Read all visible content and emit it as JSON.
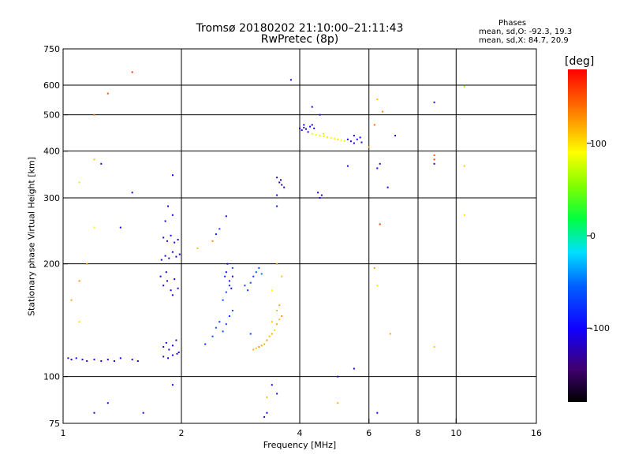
{
  "header": {
    "title_line1": "Tromsø 20180202 21:10:00–21:11:43",
    "title_line2": "RwPretec (8p)",
    "stats_heading": "Phases",
    "stats_o": "mean, sd,O: -92.3, 19.3",
    "stats_x": "mean, sd,X: 84.7, 20.9"
  },
  "colorbar": {
    "unit": "[deg]",
    "ticks": [
      "100",
      "0",
      "-100"
    ],
    "tick_values": [
      100,
      0,
      -100
    ],
    "range": [
      -180,
      180
    ]
  },
  "chart_data": {
    "type": "scatter",
    "title": "Tromsø 20180202 21:10:00–21:11:43",
    "subtitle": "RwPretec (8p)",
    "xlabel": "Frequency [MHz]",
    "ylabel": "Stationary phase Virtual Height [km]",
    "xscale": "log",
    "yscale": "log",
    "xlim": [
      1,
      16
    ],
    "ylim": [
      75,
      750
    ],
    "x_ticks": [
      "1",
      "2",
      "4",
      "6",
      "8",
      "10",
      "16"
    ],
    "x_tick_values": [
      1,
      2,
      4,
      6,
      8,
      10,
      16
    ],
    "y_ticks": [
      "75",
      "100",
      "200",
      "300",
      "400",
      "500",
      "600",
      "750"
    ],
    "y_tick_values": [
      75,
      100,
      200,
      300,
      400,
      500,
      600,
      750
    ],
    "x_grid": [
      2,
      4,
      6,
      8,
      10
    ],
    "y_grid": [
      100,
      200,
      300,
      400,
      500,
      600
    ],
    "grid": true,
    "colorbar_label": "[deg]",
    "series": [
      {
        "points": [
          [
            1.03,
            112,
            -110
          ],
          [
            1.05,
            111,
            -115
          ],
          [
            1.08,
            112,
            -105
          ],
          [
            1.12,
            111,
            -120
          ],
          [
            1.15,
            110,
            -110
          ],
          [
            1.2,
            111,
            -100
          ],
          [
            1.25,
            110,
            -115
          ],
          [
            1.3,
            111,
            -105
          ],
          [
            1.35,
            110,
            -110
          ],
          [
            1.4,
            112,
            -100
          ],
          [
            1.5,
            111,
            -115
          ],
          [
            1.55,
            110,
            -110
          ],
          [
            1.8,
            120,
            -110
          ],
          [
            1.83,
            123,
            -105
          ],
          [
            1.86,
            118,
            -115
          ],
          [
            1.9,
            121,
            -100
          ],
          [
            1.94,
            125,
            -110
          ],
          [
            1.97,
            116,
            -105
          ],
          [
            1.8,
            113,
            -120
          ],
          [
            1.85,
            112,
            -110
          ],
          [
            1.9,
            114,
            -100
          ],
          [
            1.95,
            115,
            -115
          ],
          [
            1.77,
            185,
            -110
          ],
          [
            1.8,
            175,
            -100
          ],
          [
            1.84,
            180,
            -120
          ],
          [
            1.88,
            170,
            -105
          ],
          [
            1.92,
            182,
            -110
          ],
          [
            1.96,
            172,
            -95
          ],
          [
            1.83,
            190,
            -115
          ],
          [
            1.9,
            165,
            -100
          ],
          [
            1.78,
            205,
            -115
          ],
          [
            1.82,
            210,
            -110
          ],
          [
            1.86,
            207,
            -100
          ],
          [
            1.9,
            215,
            -120
          ],
          [
            1.94,
            209,
            -110
          ],
          [
            1.98,
            212,
            -105
          ],
          [
            1.8,
            235,
            -120
          ],
          [
            1.84,
            230,
            -110
          ],
          [
            1.88,
            238,
            -100
          ],
          [
            1.92,
            228,
            -115
          ],
          [
            1.96,
            232,
            -110
          ],
          [
            1.82,
            260,
            -105
          ],
          [
            1.9,
            270,
            -110
          ],
          [
            1.85,
            285,
            -100
          ],
          [
            2.3,
            122,
            -80
          ],
          [
            2.4,
            128,
            -70
          ],
          [
            2.45,
            135,
            -60
          ],
          [
            2.5,
            140,
            -75
          ],
          [
            2.55,
            132,
            -65
          ],
          [
            2.6,
            138,
            -70
          ],
          [
            2.65,
            145,
            -80
          ],
          [
            2.7,
            150,
            -60
          ],
          [
            2.55,
            160,
            -70
          ],
          [
            2.6,
            168,
            -65
          ],
          [
            2.65,
            175,
            -75
          ],
          [
            2.58,
            185,
            -80
          ],
          [
            2.7,
            195,
            -60
          ],
          [
            2.6,
            190,
            -100
          ],
          [
            2.65,
            180,
            -95
          ],
          [
            2.68,
            172,
            -100
          ],
          [
            2.62,
            200,
            -105
          ],
          [
            2.7,
            185,
            -110
          ],
          [
            2.45,
            240,
            -90
          ],
          [
            2.5,
            248,
            -70
          ],
          [
            2.6,
            268,
            -100
          ],
          [
            2.9,
            175,
            -70
          ],
          [
            2.95,
            170,
            -75
          ],
          [
            3.0,
            178,
            -65
          ],
          [
            3.05,
            185,
            -80
          ],
          [
            3.1,
            190,
            -60
          ],
          [
            3.15,
            195,
            -65
          ],
          [
            3.2,
            188,
            -50
          ],
          [
            3.5,
            340,
            -130
          ],
          [
            3.55,
            330,
            -125
          ],
          [
            3.6,
            325,
            -130
          ],
          [
            3.65,
            320,
            -120
          ],
          [
            3.58,
            335,
            -135
          ],
          [
            4.0,
            460,
            -110
          ],
          [
            4.05,
            455,
            -120
          ],
          [
            4.1,
            462,
            -105
          ],
          [
            4.15,
            458,
            -115
          ],
          [
            4.2,
            450,
            -110
          ],
          [
            4.25,
            465,
            -100
          ],
          [
            4.3,
            470,
            -115
          ],
          [
            4.35,
            460,
            -110
          ],
          [
            5.3,
            430,
            -110
          ],
          [
            5.4,
            425,
            -115
          ],
          [
            5.5,
            420,
            -105
          ],
          [
            5.6,
            430,
            -110
          ],
          [
            5.7,
            435,
            -100
          ],
          [
            5.75,
            422,
            -120
          ],
          [
            5.5,
            440,
            -110
          ],
          [
            4.45,
            310,
            -115
          ],
          [
            4.5,
            300,
            -110
          ],
          [
            4.55,
            305,
            -120
          ],
          [
            4.3,
            525,
            -110
          ],
          [
            4.5,
            500,
            -100
          ],
          [
            1.9,
            345,
            -100
          ],
          [
            1.9,
            95,
            -110
          ],
          [
            1.6,
            80,
            -110
          ],
          [
            1.3,
            85,
            -100
          ],
          [
            1.2,
            80,
            -110
          ],
          [
            3.5,
            90,
            -120
          ],
          [
            3.4,
            95,
            -110
          ],
          [
            3.3,
            80,
            -100
          ],
          [
            3.25,
            78,
            -110
          ],
          [
            1.4,
            250,
            -110
          ],
          [
            1.5,
            310,
            -100
          ],
          [
            1.25,
            370,
            -110
          ],
          [
            3.5,
            305,
            -100
          ],
          [
            3.5,
            285,
            -90
          ],
          [
            3.8,
            620,
            -110
          ],
          [
            4.1,
            470,
            -100
          ],
          [
            5.3,
            365,
            -110
          ],
          [
            6.3,
            360,
            -110
          ],
          [
            6.4,
            370,
            -100
          ],
          [
            6.7,
            320,
            -110
          ],
          [
            7.0,
            440,
            -115
          ],
          [
            6.3,
            80,
            -110
          ],
          [
            8.8,
            370,
            -110
          ],
          [
            8.8,
            540,
            -105
          ],
          [
            5.5,
            105,
            -110
          ],
          [
            5.0,
            100,
            -115
          ],
          [
            3.0,
            130,
            -70
          ]
        ]
      },
      {
        "points": [
          [
            3.05,
            118,
            120
          ],
          [
            3.1,
            119,
            110
          ],
          [
            3.15,
            120,
            130
          ],
          [
            3.2,
            121,
            120
          ],
          [
            3.25,
            122,
            115
          ],
          [
            3.3,
            125,
            125
          ],
          [
            3.35,
            128,
            110
          ],
          [
            3.4,
            130,
            120
          ],
          [
            3.45,
            133,
            100
          ],
          [
            3.5,
            138,
            120
          ],
          [
            3.55,
            142,
            110
          ],
          [
            3.6,
            145,
            125
          ],
          [
            3.5,
            150,
            115
          ],
          [
            3.55,
            155,
            120
          ],
          [
            3.4,
            140,
            110
          ],
          [
            4.3,
            445,
            80
          ],
          [
            4.4,
            442,
            90
          ],
          [
            4.5,
            440,
            85
          ],
          [
            4.6,
            438,
            95
          ],
          [
            4.7,
            436,
            80
          ],
          [
            4.8,
            434,
            90
          ],
          [
            4.9,
            432,
            85
          ],
          [
            5.0,
            430,
            100
          ],
          [
            5.1,
            428,
            90
          ],
          [
            5.2,
            426,
            80
          ],
          [
            4.6,
            445,
            70
          ],
          [
            1.3,
            570,
            150
          ],
          [
            1.2,
            500,
            140
          ],
          [
            1.2,
            380,
            110
          ],
          [
            1.1,
            330,
            100
          ],
          [
            1.2,
            250,
            90
          ],
          [
            1.15,
            200,
            120
          ],
          [
            1.1,
            180,
            130
          ],
          [
            1.05,
            160,
            120
          ],
          [
            1.1,
            140,
            100
          ],
          [
            3.5,
            200,
            120
          ],
          [
            3.6,
            185,
            110
          ],
          [
            3.4,
            170,
            90
          ],
          [
            2.2,
            220,
            110
          ],
          [
            2.4,
            230,
            130
          ],
          [
            6.0,
            410,
            120
          ],
          [
            6.3,
            550,
            110
          ],
          [
            6.5,
            510,
            130
          ],
          [
            6.2,
            470,
            140
          ],
          [
            6.4,
            255,
            160
          ],
          [
            6.2,
            195,
            120
          ],
          [
            6.3,
            175,
            100
          ],
          [
            6.8,
            130,
            120
          ],
          [
            10.5,
            595,
            60
          ],
          [
            10.5,
            365,
            110
          ],
          [
            10.5,
            270,
            100
          ],
          [
            8.8,
            380,
            160
          ],
          [
            8.8,
            390,
            150
          ],
          [
            8.8,
            120,
            110
          ],
          [
            5.0,
            85,
            120
          ],
          [
            3.3,
            88,
            110
          ],
          [
            1.5,
            650,
            160
          ]
        ]
      }
    ]
  }
}
